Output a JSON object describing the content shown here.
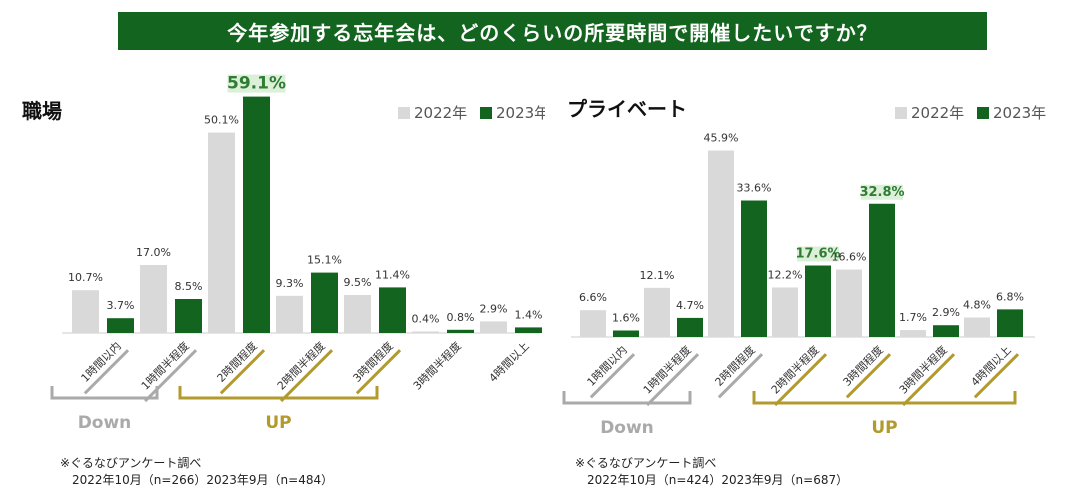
{
  "banner_title": "今年参加する忘年会は、どのくらいの所要時間で開催したいですか？",
  "colors": {
    "y2022": "#d9d9d9",
    "y2023": "#13641f",
    "gray": "#aaaaaa",
    "gold": "#b39a2c",
    "highlight": "#dcefd8"
  },
  "chart_data": [
    {
      "type": "bar",
      "title": "職場",
      "categories": [
        "1時間以内",
        "1時間半程度",
        "2時間程度",
        "2時間半程度",
        "3時間程度",
        "3時間半程度",
        "4時間以上"
      ],
      "series": [
        {
          "name": "2022年",
          "values": [
            10.7,
            17.0,
            50.1,
            9.3,
            9.5,
            0.4,
            2.9
          ]
        },
        {
          "name": "2023年",
          "values": [
            3.7,
            8.5,
            59.1,
            15.1,
            11.4,
            0.8,
            1.4
          ]
        }
      ],
      "value_labels": [
        [
          "10.7%",
          "17.0%",
          "50.1%",
          "9.3%",
          "9.5%",
          "0.4%",
          "2.9%"
        ],
        [
          "3.7%",
          "8.5%",
          "59.1%",
          "15.1%",
          "11.4%",
          "0.8%",
          "1.4%"
        ]
      ],
      "highlighted": [
        [
          1,
          2
        ]
      ],
      "down_categories": [
        0,
        1
      ],
      "up_categories": [
        2,
        3,
        4
      ],
      "down_label": "Down",
      "up_label": "UP",
      "ylim": [
        0,
        65
      ],
      "legend_position": "top-right",
      "notes": [
        "※ぐるなびアンケート調べ",
        "2022年10月（n=266）2023年9月（n=484）"
      ]
    },
    {
      "type": "bar",
      "title": "プライベート",
      "categories": [
        "1時間以内",
        "1時間半程度",
        "2時間程度",
        "2時間半程度",
        "3時間程度",
        "3時間半程度",
        "4時間以上"
      ],
      "series": [
        {
          "name": "2022年",
          "values": [
            6.6,
            12.1,
            45.9,
            12.2,
            16.6,
            1.7,
            4.8
          ]
        },
        {
          "name": "2023年",
          "values": [
            1.6,
            4.7,
            33.6,
            17.6,
            32.8,
            2.9,
            6.8
          ]
        }
      ],
      "value_labels": [
        [
          "6.6%",
          "12.1%",
          "45.9%",
          "12.2%",
          "16.6%",
          "1.7%",
          "4.8%"
        ],
        [
          "1.6%",
          "4.7%",
          "33.6%",
          "17.6%",
          "32.8%",
          "2.9%",
          "6.8%"
        ]
      ],
      "highlighted": [
        [
          1,
          3
        ],
        [
          1,
          4
        ]
      ],
      "down_categories": [
        0,
        1,
        2
      ],
      "up_categories": [
        3,
        4,
        5,
        6
      ],
      "down_label": "Down",
      "up_label": "UP",
      "ylim": [
        0,
        64
      ],
      "legend_position": "top-right",
      "notes": [
        "※ぐるなびアンケート調べ",
        "2022年10月（n=424）2023年9月（n=687）"
      ]
    }
  ]
}
